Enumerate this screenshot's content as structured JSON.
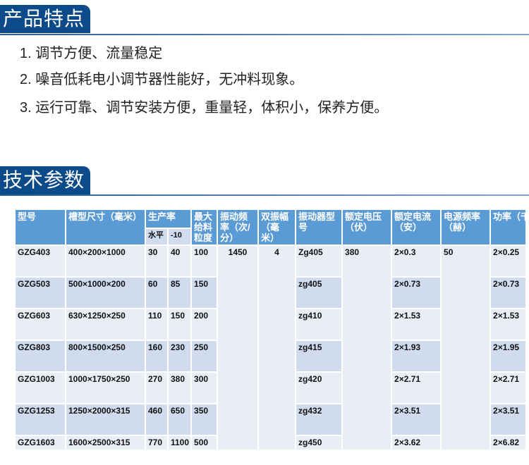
{
  "section1": {
    "title": "产品特点",
    "items": [
      "1. 调节方便、流量稳定",
      "2. 噪音低耗电小调节器性能好，无冲料现象。",
      "3. 运行可靠、调节安装方便，重量轻，体积小，保养方便。"
    ]
  },
  "section2": {
    "title": "技术参数"
  },
  "table": {
    "headers": [
      "型号",
      "槽型尺寸（毫米）",
      "生产率",
      "最大给料粒度",
      "振动频率（次/分）",
      "双振幅（毫米）",
      "振动器型号",
      "额定电压（伏）",
      "额定电流（安）",
      "电源频率（赫）",
      "功率（千瓦）"
    ],
    "subheaders": [
      "水平",
      "-10"
    ],
    "shared": {
      "freq": "1450",
      "amp": "4",
      "voltage": "380",
      "power_freq": "50"
    },
    "rows": [
      [
        "GZG403",
        "400×200×1000",
        "30",
        "40",
        "100",
        "Zg405",
        "2×0.3",
        "2×0.25"
      ],
      [
        "GZG503",
        "500×1000×200",
        "60",
        "85",
        "150",
        "zg405",
        "2×0.73",
        "2×0.73"
      ],
      [
        "GZG603",
        "630×1250×250",
        "110",
        "150",
        "200",
        "zg410",
        "2×1.53",
        "2×1.53"
      ],
      [
        "GZG803",
        "800×1500×250",
        "160",
        "230",
        "250",
        "zg415",
        "2×1.93",
        "2×1.95"
      ],
      [
        "GZG1003",
        "1000×1750×250",
        "270",
        "380",
        "300",
        "zg420",
        "2×2.71",
        "2×2.71"
      ],
      [
        "GZG1253",
        "1250×2000×315",
        "460",
        "650",
        "350",
        "zg432",
        "2×3.51",
        "2×3.51"
      ],
      [
        "GZG1603",
        "1600×2500×315",
        "770",
        "1100",
        "500",
        "zg450",
        "2×3.62",
        "2×6.82"
      ]
    ]
  }
}
